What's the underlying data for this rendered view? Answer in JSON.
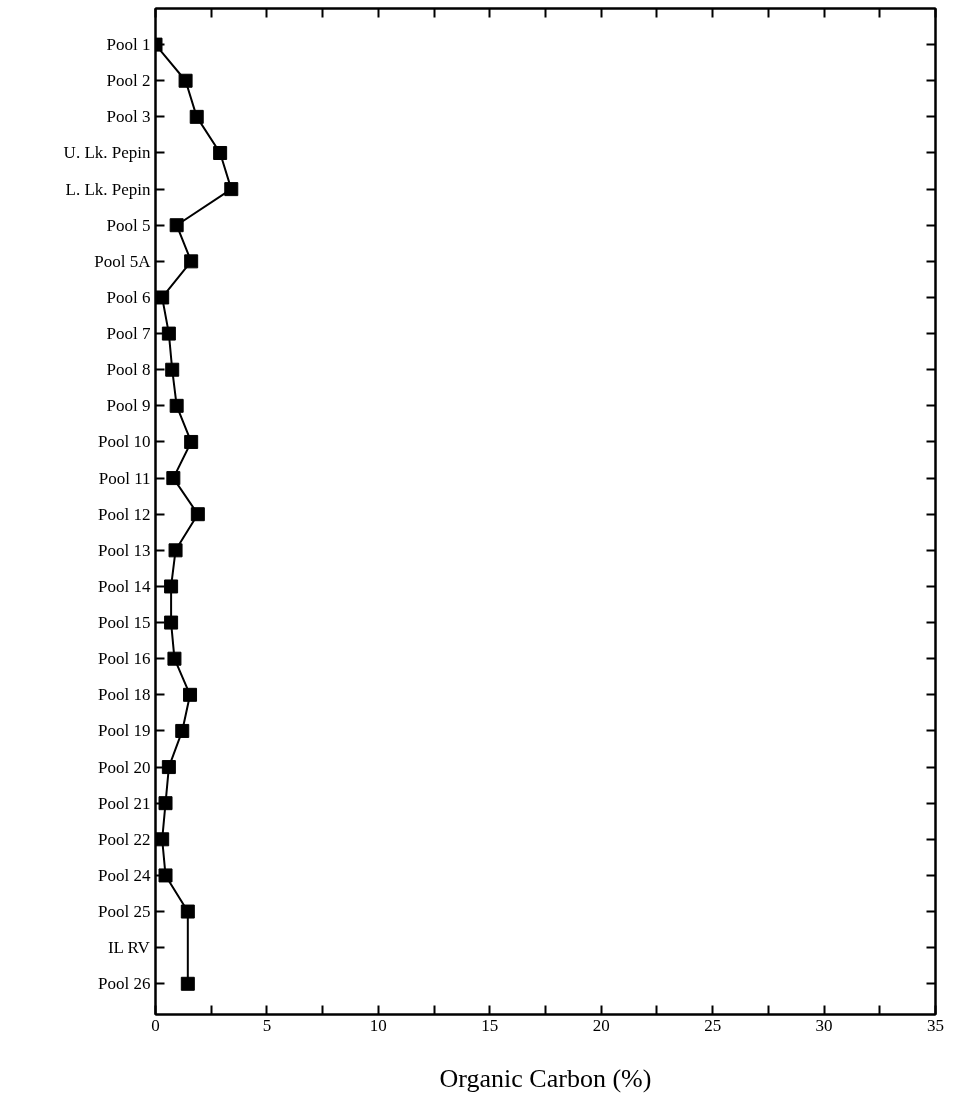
{
  "chart_data": {
    "type": "line",
    "orientation": "horizontal",
    "xlabel": "Organic Carbon (%)",
    "categories": [
      "Pool 1",
      "Pool 2",
      "Pool 3",
      "U. Lk. Pepin",
      "L. Lk. Pepin",
      "Pool 5",
      "Pool 5A",
      "Pool 6",
      "Pool 7",
      "Pool 8",
      "Pool 9",
      "Pool 10",
      "Pool 11",
      "Pool 12",
      "Pool 13",
      "Pool 14",
      "Pool 15",
      "Pool 16",
      "Pool 18",
      "Pool 19",
      "Pool 20",
      "Pool 21",
      "Pool 22",
      "Pool 24",
      "Pool 25",
      "IL RV",
      "Pool 26"
    ],
    "values": [
      0.0,
      1.35,
      1.85,
      2.9,
      3.4,
      0.95,
      1.6,
      0.3,
      0.6,
      0.75,
      0.95,
      1.6,
      0.8,
      1.9,
      0.9,
      0.7,
      0.7,
      0.85,
      1.55,
      1.2,
      0.6,
      0.45,
      0.3,
      0.45,
      1.45,
      null,
      1.45
    ],
    "color": "#000000",
    "marker": "square",
    "line_style": "solid",
    "grid": false,
    "xlim": [
      0,
      35
    ],
    "xticks": [
      0,
      {
        "value": 2.5,
        "label": null
      },
      5,
      {
        "value": 7.5,
        "label": null
      },
      10,
      {
        "value": 12.5,
        "label": null
      },
      15,
      {
        "value": 17.5,
        "label": null
      },
      20,
      {
        "value": 22.5,
        "label": null
      },
      25,
      {
        "value": 27.5,
        "label": null
      },
      30,
      {
        "value": 32.5,
        "label": null
      },
      35
    ]
  }
}
